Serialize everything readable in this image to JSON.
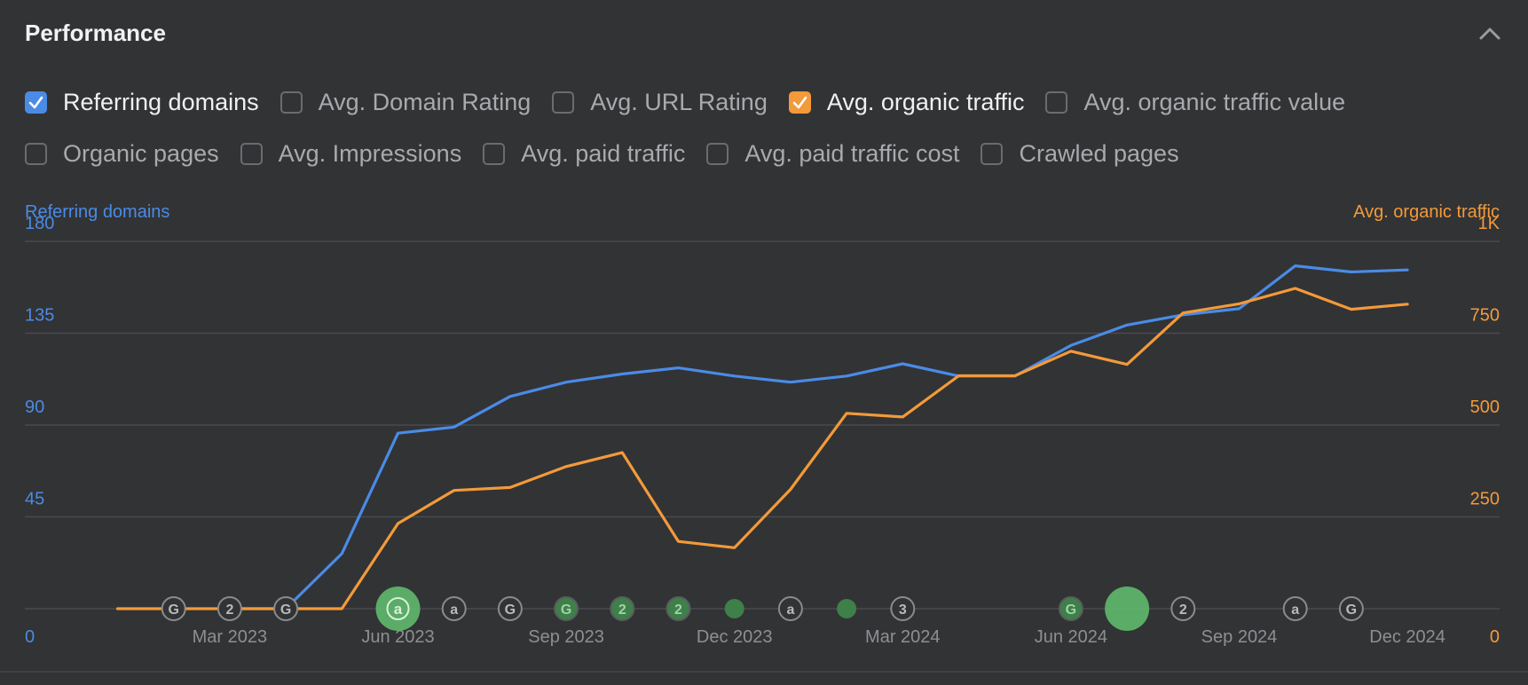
{
  "header": {
    "title": "Performance",
    "collapse_icon": "chevron-up-icon"
  },
  "filters": {
    "row1": [
      {
        "label": "Referring domains",
        "checked": true,
        "color": "#4a8be6"
      },
      {
        "label": "Avg. Domain Rating",
        "checked": false
      },
      {
        "label": "Avg. URL Rating",
        "checked": false
      },
      {
        "label": "Avg. organic traffic",
        "checked": true,
        "color": "#f39a3a"
      },
      {
        "label": "Avg. organic traffic value",
        "checked": false
      }
    ],
    "row2": [
      {
        "label": "Organic pages",
        "checked": false
      },
      {
        "label": "Avg. Impressions",
        "checked": false
      },
      {
        "label": "Avg. paid traffic",
        "checked": false
      },
      {
        "label": "Avg. paid traffic cost",
        "checked": false
      },
      {
        "label": "Crawled pages",
        "checked": false
      }
    ]
  },
  "chart_data": {
    "type": "line",
    "left_axis": {
      "title": "Referring domains",
      "ticks": [
        "0",
        "45",
        "90",
        "135",
        "180"
      ],
      "ylim": [
        0,
        180
      ],
      "color": "#4a8be6"
    },
    "right_axis": {
      "title": "Avg. organic traffic",
      "ticks": [
        "0",
        "250",
        "500",
        "750",
        "1K"
      ],
      "ylim": [
        0,
        1000
      ],
      "color": "#f39a3a"
    },
    "x_labels": [
      "Mar 2023",
      "Jun 2023",
      "Sep 2023",
      "Dec 2023",
      "Mar 2024",
      "Jun 2024",
      "Sep 2024",
      "Dec 2024"
    ],
    "x": [
      "2023-01",
      "2023-02",
      "2023-03",
      "2023-04",
      "2023-05",
      "2023-06",
      "2023-07",
      "2023-08",
      "2023-09",
      "2023-10",
      "2023-11",
      "2023-12",
      "2024-01",
      "2024-02",
      "2024-03",
      "2024-04",
      "2024-05",
      "2024-06",
      "2024-07",
      "2024-08",
      "2024-09",
      "2024-10",
      "2024-11",
      "2024-12"
    ],
    "grid": true,
    "series": [
      {
        "name": "Referring domains",
        "axis": "left",
        "color": "#4a8be6",
        "values": [
          null,
          null,
          0,
          0,
          27,
          86,
          89,
          104,
          111,
          115,
          118,
          114,
          111,
          114,
          120,
          114,
          114,
          129,
          139,
          144,
          147,
          168,
          165,
          166
        ]
      },
      {
        "name": "Avg. organic traffic",
        "axis": "right",
        "color": "#f39a3a",
        "values": [
          0,
          0,
          0,
          0,
          0,
          232,
          322,
          330,
          387,
          425,
          183,
          166,
          325,
          532,
          522,
          634,
          634,
          701,
          665,
          805,
          830,
          872,
          815,
          829
        ]
      }
    ],
    "annotations": [
      {
        "x": "2023-02",
        "label": "G",
        "kind": "icon"
      },
      {
        "x": "2023-03",
        "label": "2",
        "kind": "icon"
      },
      {
        "x": "2023-04",
        "label": "G",
        "kind": "icon"
      },
      {
        "x": "2023-06",
        "label": "a",
        "kind": "big-green"
      },
      {
        "x": "2023-07",
        "label": "a",
        "kind": "icon"
      },
      {
        "x": "2023-08",
        "label": "G",
        "kind": "icon"
      },
      {
        "x": "2023-09",
        "label": "G",
        "kind": "green-icon"
      },
      {
        "x": "2023-10",
        "label": "2",
        "kind": "green-icon"
      },
      {
        "x": "2023-11",
        "label": "2",
        "kind": "green-icon"
      },
      {
        "x": "2023-12",
        "label": "",
        "kind": "green-dot"
      },
      {
        "x": "2024-01",
        "label": "a",
        "kind": "icon"
      },
      {
        "x": "2024-02",
        "label": "",
        "kind": "green-dot"
      },
      {
        "x": "2024-03",
        "label": "3",
        "kind": "icon"
      },
      {
        "x": "2024-06",
        "label": "G",
        "kind": "green-icon"
      },
      {
        "x": "2024-07",
        "label": "",
        "kind": "big-green"
      },
      {
        "x": "2024-08",
        "label": "2",
        "kind": "icon"
      },
      {
        "x": "2024-10",
        "label": "a",
        "kind": "icon"
      },
      {
        "x": "2024-11",
        "label": "G",
        "kind": "icon"
      }
    ]
  }
}
